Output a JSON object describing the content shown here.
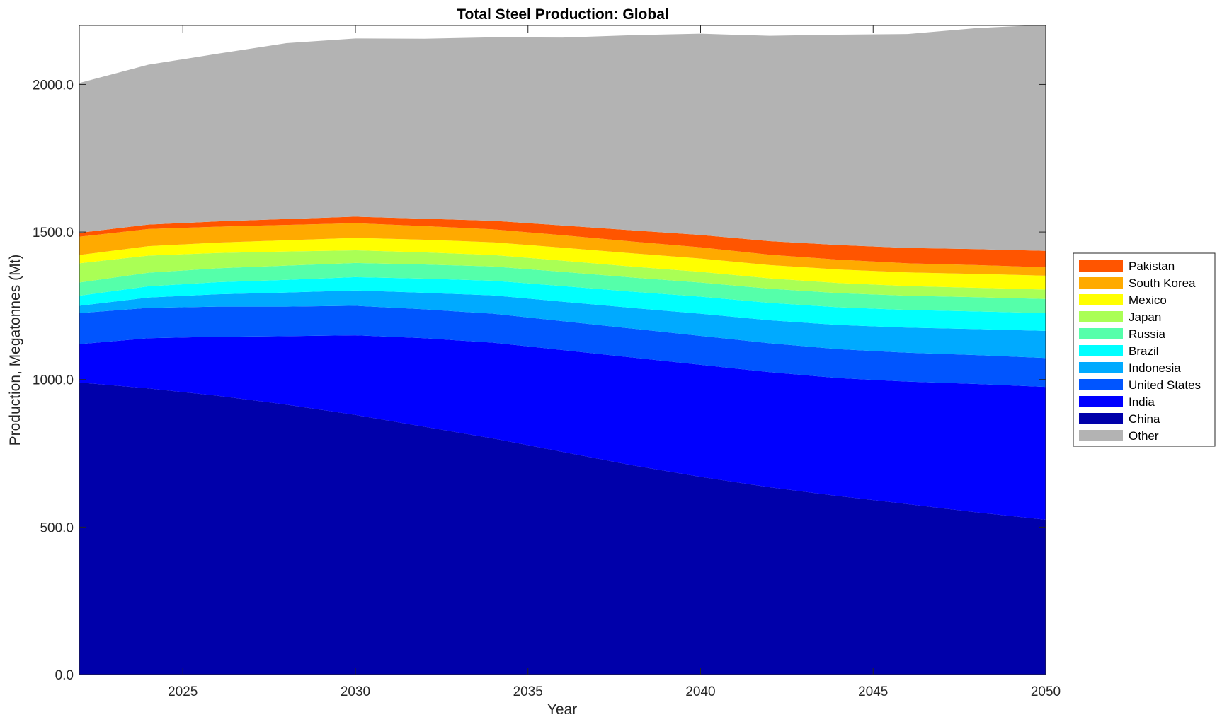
{
  "chart_data": {
    "type": "area",
    "stacked": true,
    "title": "Total Steel Production: Global",
    "xlabel": "Year",
    "ylabel": "Production, Megatonnes (Mt)",
    "xlim": [
      2022,
      2050
    ],
    "ylim": [
      0,
      2200
    ],
    "xticks": [
      2025,
      2030,
      2035,
      2040,
      2045,
      2050
    ],
    "yticks": [
      0,
      500,
      1000,
      1500,
      2000
    ],
    "ytick_labels": [
      "0.0",
      "500.0",
      "1000.0",
      "1500.0",
      "2000.0"
    ],
    "grid": false,
    "legend_position": "right",
    "x": [
      2022,
      2024,
      2026,
      2028,
      2030,
      2032,
      2034,
      2036,
      2038,
      2040,
      2042,
      2044,
      2046,
      2048,
      2050
    ],
    "series": [
      {
        "name": "China",
        "color": "#0000aa",
        "values": [
          990,
          970,
          945,
          915,
          880,
          840,
          800,
          755,
          710,
          670,
          635,
          605,
          578,
          550,
          525
        ]
      },
      {
        "name": "India",
        "color": "#0000ff",
        "values": [
          130,
          170,
          200,
          232,
          270,
          300,
          325,
          345,
          365,
          380,
          390,
          400,
          415,
          435,
          450
        ]
      },
      {
        "name": "United States",
        "color": "#0055ff",
        "values": [
          105,
          103,
          102,
          100,
          100,
          98,
          98,
          98,
          98,
          98,
          98,
          98,
          98,
          98,
          98
        ]
      },
      {
        "name": "Indonesia",
        "color": "#00aaff",
        "values": [
          25,
          35,
          42,
          48,
          52,
          56,
          62,
          66,
          70,
          75,
          78,
          82,
          85,
          88,
          92
        ]
      },
      {
        "name": "Brazil",
        "color": "#00ffff",
        "values": [
          34,
          38,
          41,
          43,
          45,
          48,
          50,
          53,
          55,
          58,
          59,
          60,
          60,
          60,
          60
        ]
      },
      {
        "name": "Russia",
        "color": "#55ffaa",
        "values": [
          45,
          46,
          47,
          48,
          48,
          48,
          48,
          48,
          48,
          48,
          48,
          48,
          48,
          48,
          48
        ]
      },
      {
        "name": "Japan",
        "color": "#aaff55",
        "values": [
          65,
          58,
          52,
          48,
          43,
          41,
          39,
          38,
          37,
          36,
          35,
          34,
          33,
          32,
          32
        ]
      },
      {
        "name": "Mexico",
        "color": "#ffff00",
        "values": [
          28,
          32,
          35,
          38,
          42,
          43,
          43,
          44,
          45,
          45,
          45,
          46,
          46,
          47,
          47
        ]
      },
      {
        "name": "South Korea",
        "color": "#ffaa00",
        "values": [
          62,
          58,
          54,
          52,
          50,
          46,
          44,
          42,
          40,
          38,
          35,
          33,
          31,
          30,
          28
        ]
      },
      {
        "name": "Pakistan",
        "color": "#ff5500",
        "values": [
          13,
          15,
          18,
          20,
          22,
          25,
          29,
          33,
          38,
          42,
          46,
          50,
          52,
          54,
          56
        ]
      },
      {
        "name": "Other",
        "color": "#b3b3b3",
        "values": [
          508,
          542,
          568,
          596,
          604,
          610,
          622,
          637,
          661,
          682,
          696,
          713,
          725,
          749,
          766
        ]
      }
    ],
    "legend_order": [
      "Pakistan",
      "South Korea",
      "Mexico",
      "Japan",
      "Russia",
      "Brazil",
      "Indonesia",
      "United States",
      "India",
      "China",
      "Other"
    ]
  }
}
